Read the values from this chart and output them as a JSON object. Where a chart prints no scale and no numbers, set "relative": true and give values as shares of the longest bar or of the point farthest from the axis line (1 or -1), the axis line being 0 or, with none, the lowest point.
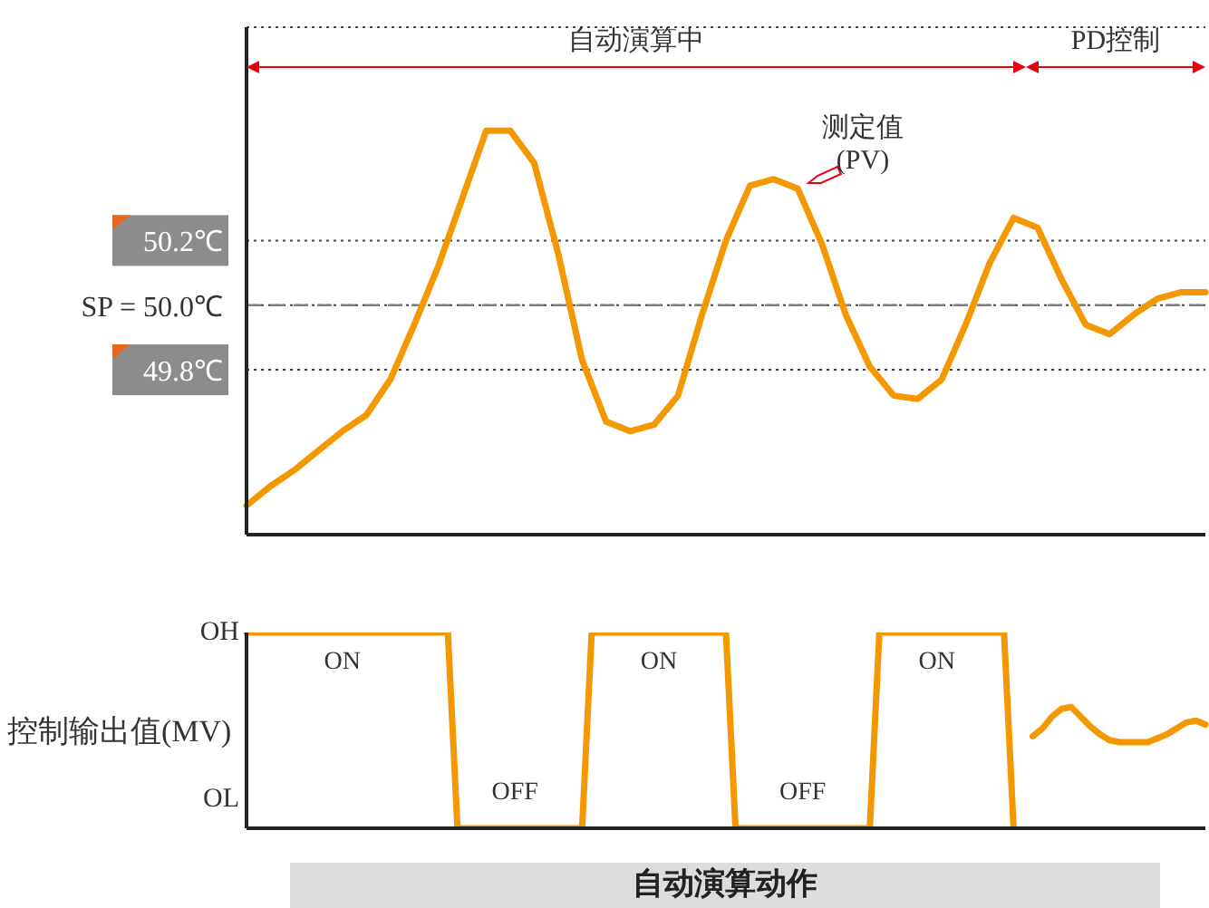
{
  "chart_data": [
    {
      "type": "line",
      "tick_labels": "y",
      "grid": "y",
      "categories": [
        null,
        null,
        null,
        null,
        null,
        null,
        null,
        null,
        null,
        null,
        null,
        null,
        null,
        null,
        null,
        null,
        null,
        null,
        null,
        null,
        null,
        null,
        null,
        null,
        null,
        null,
        null,
        null,
        null,
        null,
        null,
        null,
        null,
        null,
        null,
        null,
        null,
        null,
        null,
        null,
        null
      ],
      "ylim": [
        49.29,
        50.86
      ],
      "yticks": [
        {
          "value": 49.8,
          "label": "49.8℃"
        },
        {
          "value": 50,
          "label": "SP = 50.0℃"
        },
        {
          "value": 50.2,
          "label": "50.2℃"
        }
      ],
      "series": [
        {
          "color": "#f39800",
          "values": [
            49.38,
            49.44,
            49.49,
            49.55,
            49.61,
            49.66,
            49.77,
            49.94,
            50.12,
            50.33,
            50.54,
            50.54,
            50.44,
            50.16,
            49.83,
            49.64,
            49.61,
            49.63,
            49.72,
            49.97,
            50.2,
            50.37,
            50.39,
            50.36,
            50.19,
            49.97,
            49.81,
            49.72,
            49.71,
            49.77,
            49.94,
            50.13,
            50.27,
            50.24,
            50.08,
            49.94,
            49.91,
            49.97,
            50.02,
            50.04,
            50.04
          ]
        }
      ],
      "ref_lines": [
        {
          "axis": "y",
          "value": 50,
          "color": "#808080",
          "line_style": "dashed"
        }
      ],
      "annotations": [
        "自动演算中",
        "PD控制",
        "测定值\n(PV)"
      ]
    },
    {
      "type": "line",
      "relative": true,
      "tick_labels": false,
      "ylabel": "控制输出值(MV)",
      "xlabel": "自动演算动作",
      "categories": [
        null,
        null,
        null,
        null,
        null,
        null,
        null,
        null,
        null,
        null,
        null,
        null,
        null,
        null,
        null,
        null,
        null,
        null,
        null,
        null,
        null,
        null,
        null,
        null,
        null,
        null,
        null,
        null,
        null,
        null,
        null,
        null,
        null,
        null,
        null,
        null,
        null,
        null,
        null,
        null,
        null,
        null,
        null,
        null,
        null,
        null,
        null,
        null,
        null,
        null,
        null,
        null,
        null,
        null,
        null,
        null,
        null,
        null,
        null,
        null,
        null,
        null,
        null,
        null,
        null,
        null,
        null,
        null,
        null,
        null,
        null,
        null,
        null,
        null,
        null,
        null,
        null,
        null,
        null,
        null,
        null,
        null,
        null,
        null,
        null,
        null,
        null,
        null,
        null,
        null,
        null,
        null,
        null,
        null,
        null,
        null,
        null,
        null,
        null,
        null,
        null
      ],
      "series": [
        {
          "color": "#f39800",
          "values": [
            1,
            1,
            1,
            1,
            1,
            1,
            1,
            1,
            1,
            1,
            1,
            1,
            1,
            1,
            1,
            1,
            1,
            1,
            1,
            1,
            1,
            1,
            0,
            0,
            0,
            0,
            0,
            0,
            0,
            0,
            0,
            0,
            0,
            0,
            0,
            0,
            1,
            1,
            1,
            1,
            1,
            1,
            1,
            1,
            1,
            1,
            1,
            1,
            1,
            1,
            1,
            0,
            0,
            0,
            0,
            0,
            0,
            0,
            0,
            0,
            0,
            0,
            0,
            0,
            0,
            0,
            1,
            1,
            1,
            1,
            1,
            1,
            1,
            1,
            1,
            1,
            1,
            1,
            1,
            1,
            0,
            null,
            null,
            null,
            null,
            null,
            null,
            null,
            null,
            null,
            null,
            null,
            null,
            null,
            null,
            null,
            null,
            null,
            null,
            null,
            null
          ]
        },
        {
          "color": "#f39800",
          "values": [
            null,
            null,
            null,
            null,
            null,
            null,
            null,
            null,
            null,
            null,
            null,
            null,
            null,
            null,
            null,
            null,
            null,
            null,
            null,
            null,
            null,
            null,
            null,
            null,
            null,
            null,
            null,
            null,
            null,
            null,
            null,
            null,
            null,
            null,
            null,
            null,
            null,
            null,
            null,
            null,
            null,
            null,
            null,
            null,
            null,
            null,
            null,
            null,
            null,
            null,
            null,
            null,
            null,
            null,
            null,
            null,
            null,
            null,
            null,
            null,
            null,
            null,
            null,
            null,
            null,
            null,
            null,
            null,
            null,
            null,
            null,
            null,
            null,
            null,
            null,
            null,
            null,
            null,
            null,
            null,
            null,
            null,
            0.47,
            0.51,
            0.57,
            0.61,
            0.62,
            0.57,
            0.52,
            0.48,
            0.45,
            0.44,
            0.44,
            0.44,
            0.44,
            0.46,
            0.48,
            0.51,
            0.54,
            0.55,
            0.53
          ]
        }
      ],
      "annotations": [
        "OH",
        "OL",
        "ON",
        "OFF",
        "ON",
        "OFF",
        "ON"
      ]
    }
  ]
}
